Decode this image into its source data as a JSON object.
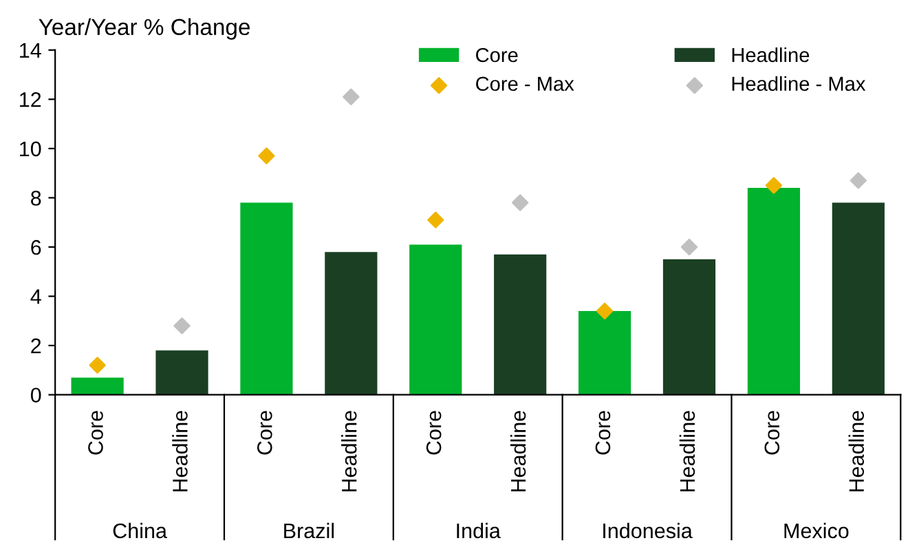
{
  "chart_data": {
    "type": "bar",
    "ylabel": "Year/Year % Change",
    "categories": [
      "Core",
      "Headline",
      "Core",
      "Headline",
      "Core",
      "Headline",
      "Core",
      "Headline",
      "Core",
      "Headline"
    ],
    "annotations": [
      "China",
      "Brazil",
      "India",
      "Indonesia",
      "Mexico"
    ],
    "series": [
      {
        "name": "Core",
        "color": "#00b22d",
        "values": [
          0.7,
          null,
          7.8,
          null,
          6.1,
          null,
          3.4,
          null,
          8.4,
          null
        ]
      },
      {
        "name": "Headline",
        "color": "#1b3f23",
        "values": [
          null,
          1.8,
          null,
          5.8,
          null,
          5.7,
          null,
          5.5,
          null,
          7.8
        ]
      },
      {
        "name": "Core - Max",
        "type": "scatter",
        "marker": "diamond",
        "color": "#f0b400",
        "values": [
          1.2,
          null,
          9.7,
          null,
          7.1,
          null,
          3.4,
          null,
          8.5,
          null
        ]
      },
      {
        "name": "Headline - Max",
        "type": "scatter",
        "marker": "diamond",
        "color": "#c0c0c0",
        "values": [
          null,
          2.8,
          null,
          12.1,
          null,
          7.8,
          null,
          6.0,
          null,
          8.7
        ]
      }
    ],
    "ylim": [
      0,
      14
    ],
    "yticks": [
      0,
      2,
      4,
      6,
      8,
      10,
      12,
      14
    ],
    "grid": false,
    "legend": "top right"
  }
}
